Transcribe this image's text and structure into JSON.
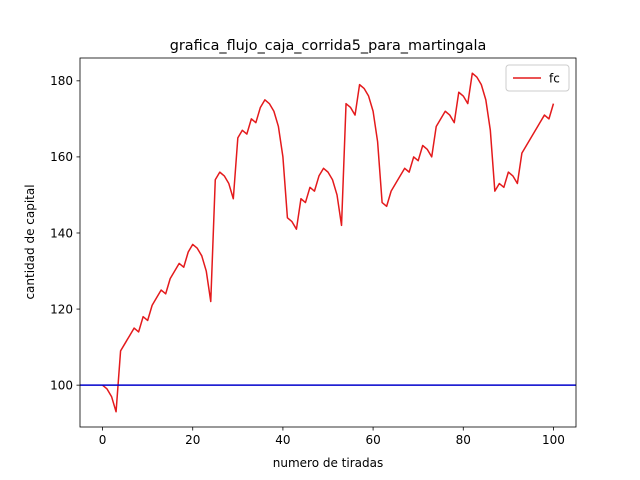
{
  "chart_data": {
    "type": "line",
    "title": "grafica_flujo_caja_corrida5_para_martingala",
    "xlabel": "numero de tiradas",
    "ylabel": "cantidad de capital",
    "xlim": [
      -5,
      105
    ],
    "ylim": [
      89,
      186
    ],
    "xticks": [
      0,
      20,
      40,
      60,
      80,
      100
    ],
    "yticks": [
      100,
      120,
      140,
      160,
      180
    ],
    "grid": false,
    "legend": {
      "placement": "top-right",
      "entries": [
        "fc"
      ]
    },
    "series": [
      {
        "name": "fc",
        "color": "#e41a1c",
        "x": [
          0,
          1,
          2,
          3,
          4,
          5,
          6,
          7,
          8,
          9,
          10,
          11,
          12,
          13,
          14,
          15,
          16,
          17,
          18,
          19,
          20,
          21,
          22,
          23,
          24,
          25,
          26,
          27,
          28,
          29,
          30,
          31,
          32,
          33,
          34,
          35,
          36,
          37,
          38,
          39,
          40,
          41,
          42,
          43,
          44,
          45,
          46,
          47,
          48,
          49,
          50,
          51,
          52,
          53,
          54,
          55,
          56,
          57,
          58,
          59,
          60,
          61,
          62,
          63,
          64,
          65,
          66,
          67,
          68,
          69,
          70,
          71,
          72,
          73,
          74,
          75,
          76,
          77,
          78,
          79,
          80,
          81,
          82,
          83,
          84,
          85,
          86,
          87,
          88,
          89,
          90,
          91,
          92,
          93,
          94,
          95,
          96,
          97,
          98,
          99,
          100
        ],
        "y": [
          100,
          99,
          97,
          93,
          109,
          111,
          113,
          115,
          114,
          118,
          117,
          121,
          123,
          125,
          124,
          128,
          130,
          132,
          131,
          135,
          137,
          136,
          134,
          130,
          122,
          154,
          156,
          155,
          153,
          149,
          165,
          167,
          166,
          170,
          169,
          173,
          175,
          174,
          172,
          168,
          160,
          144,
          143,
          141,
          149,
          148,
          152,
          151,
          155,
          157,
          156,
          154,
          150,
          142,
          174,
          173,
          171,
          179,
          178,
          176,
          172,
          164,
          148,
          147,
          151,
          153,
          155,
          157,
          156,
          160,
          159,
          163,
          162,
          160,
          168,
          170,
          172,
          171,
          169,
          177,
          176,
          174,
          182,
          181,
          179,
          175,
          167,
          151,
          153,
          152,
          156,
          155,
          153,
          161,
          163,
          165,
          167,
          169,
          171,
          170,
          174
        ]
      }
    ],
    "reference_line": {
      "y": 100,
      "color": "#0000cc"
    }
  }
}
